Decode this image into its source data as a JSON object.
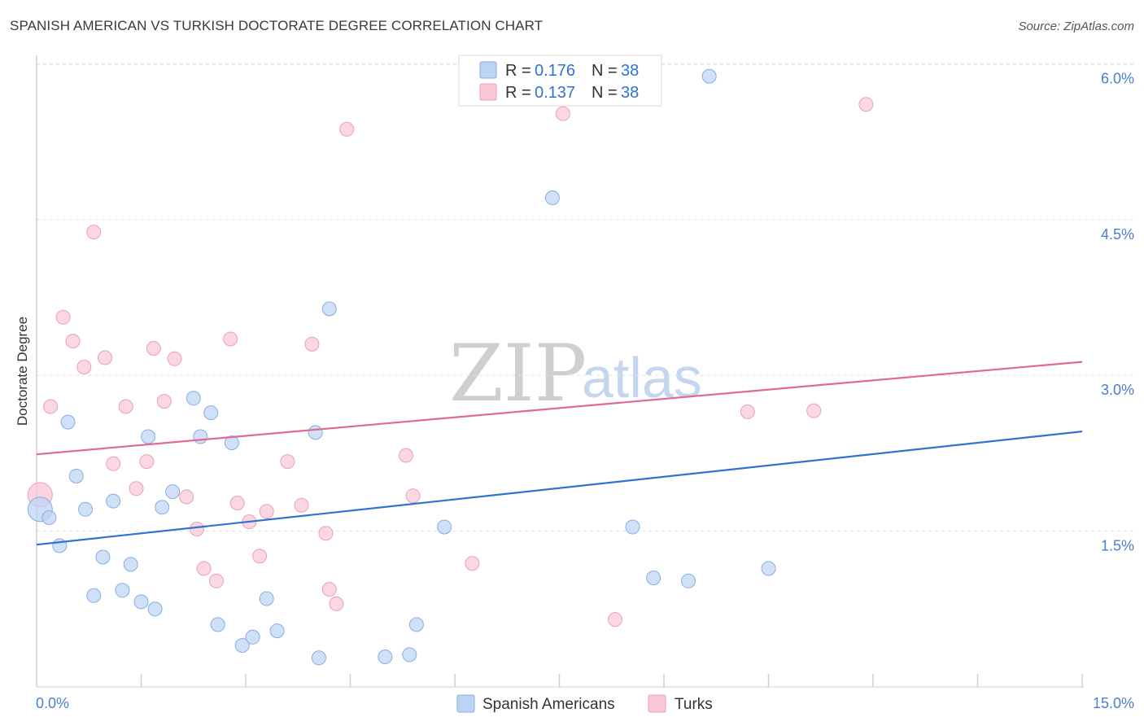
{
  "header": {
    "title": "SPANISH AMERICAN VS TURKISH DOCTORATE DEGREE CORRELATION CHART",
    "source": "Source: ZipAtlas.com"
  },
  "watermark": {
    "zip": "ZIP",
    "atlas": "atlas"
  },
  "colors": {
    "blue_fill": "#bcd4f3",
    "blue_stroke": "#86aee3",
    "blue_line": "#2f72d0",
    "pink_fill": "#f9c6d5",
    "pink_stroke": "#eaa0b8",
    "pink_line": "#e06a94",
    "tick_text": "#4a7fd0",
    "grid": "#e2e2e2"
  },
  "legend": {
    "rows": [
      {
        "r_label": "R = ",
        "r_value": "0.176",
        "n_label": "N = ",
        "n_value": "38"
      },
      {
        "r_label": "R = ",
        "r_value": "0.137",
        "n_label": "N = ",
        "n_value": "38"
      }
    ]
  },
  "bottom_legend": [
    "Spanish Americans",
    "Turks"
  ],
  "chart_data": {
    "type": "scatter",
    "title": "SPANISH AMERICAN VS TURKISH DOCTORATE DEGREE CORRELATION CHART",
    "xlabel": "",
    "ylabel": "Doctorate Degree",
    "xlim": [
      0,
      15
    ],
    "ylim": [
      0,
      6.25
    ],
    "x_tick_labels": [
      "0.0%",
      "15.0%"
    ],
    "y_ticks": [
      1.5,
      3.0,
      4.5,
      6.0
    ],
    "y_tick_labels": [
      "1.5%",
      "3.0%",
      "4.5%",
      "6.0%"
    ],
    "grid": true,
    "series": [
      {
        "name": "Spanish Americans",
        "r": 0.176,
        "n": 38,
        "trend": {
          "x": [
            0,
            15
          ],
          "y": [
            1.37,
            2.46
          ]
        },
        "points": [
          {
            "x": 0.05,
            "y": 1.71,
            "big": true
          },
          {
            "x": 0.18,
            "y": 1.63
          },
          {
            "x": 0.33,
            "y": 1.36
          },
          {
            "x": 0.45,
            "y": 2.55
          },
          {
            "x": 0.57,
            "y": 2.03
          },
          {
            "x": 0.7,
            "y": 1.71
          },
          {
            "x": 0.82,
            "y": 0.88
          },
          {
            "x": 0.95,
            "y": 1.25
          },
          {
            "x": 1.1,
            "y": 1.79
          },
          {
            "x": 1.23,
            "y": 0.93
          },
          {
            "x": 1.35,
            "y": 1.18
          },
          {
            "x": 1.5,
            "y": 0.82
          },
          {
            "x": 1.6,
            "y": 2.41
          },
          {
            "x": 1.7,
            "y": 0.75
          },
          {
            "x": 1.8,
            "y": 1.73
          },
          {
            "x": 1.95,
            "y": 1.88
          },
          {
            "x": 2.25,
            "y": 2.78
          },
          {
            "x": 2.35,
            "y": 2.41
          },
          {
            "x": 2.5,
            "y": 2.64
          },
          {
            "x": 2.6,
            "y": 0.6
          },
          {
            "x": 2.8,
            "y": 2.35
          },
          {
            "x": 2.95,
            "y": 0.4
          },
          {
            "x": 3.1,
            "y": 0.48
          },
          {
            "x": 3.3,
            "y": 0.85
          },
          {
            "x": 3.45,
            "y": 0.54
          },
          {
            "x": 4.0,
            "y": 2.45
          },
          {
            "x": 4.05,
            "y": 0.28
          },
          {
            "x": 4.2,
            "y": 3.64
          },
          {
            "x": 5.0,
            "y": 0.29
          },
          {
            "x": 5.35,
            "y": 0.31
          },
          {
            "x": 5.45,
            "y": 0.6
          },
          {
            "x": 5.85,
            "y": 1.54
          },
          {
            "x": 7.4,
            "y": 4.71
          },
          {
            "x": 8.55,
            "y": 1.54
          },
          {
            "x": 8.85,
            "y": 1.05
          },
          {
            "x": 9.35,
            "y": 1.02
          },
          {
            "x": 9.65,
            "y": 5.88
          },
          {
            "x": 10.5,
            "y": 1.14
          }
        ]
      },
      {
        "name": "Turks",
        "r": 0.137,
        "n": 38,
        "trend": {
          "x": [
            0,
            15
          ],
          "y": [
            2.24,
            3.13
          ]
        },
        "points": [
          {
            "x": 0.05,
            "y": 1.85,
            "big": true
          },
          {
            "x": 0.2,
            "y": 2.7
          },
          {
            "x": 0.38,
            "y": 3.56
          },
          {
            "x": 0.52,
            "y": 3.33
          },
          {
            "x": 0.68,
            "y": 3.08
          },
          {
            "x": 0.82,
            "y": 4.38
          },
          {
            "x": 0.98,
            "y": 3.17
          },
          {
            "x": 1.1,
            "y": 2.15
          },
          {
            "x": 1.28,
            "y": 2.7
          },
          {
            "x": 1.43,
            "y": 1.91
          },
          {
            "x": 1.58,
            "y": 2.17
          },
          {
            "x": 1.68,
            "y": 3.26
          },
          {
            "x": 1.83,
            "y": 2.75
          },
          {
            "x": 1.98,
            "y": 3.16
          },
          {
            "x": 2.15,
            "y": 1.83
          },
          {
            "x": 2.3,
            "y": 1.52
          },
          {
            "x": 2.4,
            "y": 1.14
          },
          {
            "x": 2.58,
            "y": 1.02
          },
          {
            "x": 2.78,
            "y": 3.35
          },
          {
            "x": 2.88,
            "y": 1.77
          },
          {
            "x": 3.05,
            "y": 1.59
          },
          {
            "x": 3.2,
            "y": 1.26
          },
          {
            "x": 3.3,
            "y": 1.69
          },
          {
            "x": 3.6,
            "y": 2.17
          },
          {
            "x": 3.8,
            "y": 1.75
          },
          {
            "x": 3.95,
            "y": 3.3
          },
          {
            "x": 4.15,
            "y": 1.48
          },
          {
            "x": 4.2,
            "y": 0.94
          },
          {
            "x": 4.3,
            "y": 0.8
          },
          {
            "x": 4.45,
            "y": 5.37
          },
          {
            "x": 5.3,
            "y": 2.23
          },
          {
            "x": 5.4,
            "y": 1.84
          },
          {
            "x": 6.25,
            "y": 1.19
          },
          {
            "x": 7.55,
            "y": 5.52
          },
          {
            "x": 8.3,
            "y": 0.65
          },
          {
            "x": 10.2,
            "y": 2.65
          },
          {
            "x": 11.15,
            "y": 2.66
          },
          {
            "x": 11.9,
            "y": 5.61
          }
        ]
      }
    ]
  }
}
